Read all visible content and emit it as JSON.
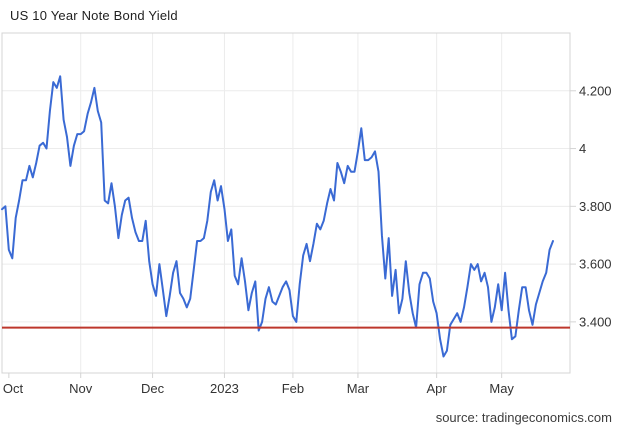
{
  "title": "US 10 Year Note Bond Yield",
  "source": "source: tradingeconomics.com",
  "colors": {
    "series_line": "#3a6ad4",
    "reference_line": "#bd372c",
    "grid": "#ececec",
    "axis_border": "#d4d4d4",
    "tick_text": "#333333"
  },
  "chart_data": {
    "type": "line",
    "title": "US 10 Year Note Bond Yield",
    "series_name": "US 10 Year Note Bond Yield",
    "ylabel": "",
    "xlabel": "",
    "grid": true,
    "legend_position": "none",
    "ylim": [
      3.223,
      4.4
    ],
    "y_ticks": [
      {
        "label": "4.200",
        "value": 4.2
      },
      {
        "label": "4",
        "value": 4.0
      },
      {
        "label": "3.800",
        "value": 3.8
      },
      {
        "label": "3.600",
        "value": 3.6
      },
      {
        "label": "3.400",
        "value": 3.4
      }
    ],
    "x_ticks": [
      {
        "label": "Oct",
        "index": 2,
        "gridline": false
      },
      {
        "label": "Nov",
        "index": 23,
        "gridline": true
      },
      {
        "label": "Dec",
        "index": 44,
        "gridline": true
      },
      {
        "label": "2023",
        "index": 65,
        "gridline": true
      },
      {
        "label": "Feb",
        "index": 85,
        "gridline": true
      },
      {
        "label": "Mar",
        "index": 104,
        "gridline": true
      },
      {
        "label": "Apr",
        "index": 127,
        "gridline": true
      },
      {
        "label": "May",
        "index": 146,
        "gridline": true
      }
    ],
    "reference_line": {
      "value": 3.38
    },
    "values": [
      3.79,
      3.8,
      3.65,
      3.62,
      3.76,
      3.82,
      3.89,
      3.89,
      3.94,
      3.9,
      3.95,
      4.01,
      4.02,
      4.0,
      4.13,
      4.23,
      4.21,
      4.25,
      4.1,
      4.04,
      3.94,
      4.01,
      4.05,
      4.05,
      4.06,
      4.12,
      4.16,
      4.21,
      4.13,
      4.09,
      3.82,
      3.81,
      3.88,
      3.8,
      3.69,
      3.77,
      3.82,
      3.83,
      3.76,
      3.71,
      3.68,
      3.68,
      3.75,
      3.61,
      3.53,
      3.49,
      3.6,
      3.51,
      3.42,
      3.49,
      3.57,
      3.61,
      3.5,
      3.48,
      3.45,
      3.48,
      3.58,
      3.68,
      3.68,
      3.69,
      3.75,
      3.85,
      3.89,
      3.82,
      3.87,
      3.79,
      3.68,
      3.72,
      3.56,
      3.53,
      3.62,
      3.54,
      3.44,
      3.5,
      3.54,
      3.37,
      3.4,
      3.48,
      3.52,
      3.47,
      3.46,
      3.49,
      3.52,
      3.54,
      3.51,
      3.42,
      3.4,
      3.53,
      3.63,
      3.67,
      3.61,
      3.67,
      3.74,
      3.72,
      3.75,
      3.81,
      3.86,
      3.82,
      3.95,
      3.92,
      3.88,
      3.94,
      3.92,
      3.92,
      3.99,
      4.07,
      3.96,
      3.96,
      3.97,
      3.99,
      3.92,
      3.7,
      3.55,
      3.69,
      3.49,
      3.58,
      3.43,
      3.48,
      3.61,
      3.5,
      3.43,
      3.38,
      3.53,
      3.57,
      3.57,
      3.55,
      3.47,
      3.43,
      3.34,
      3.28,
      3.3,
      3.39,
      3.41,
      3.43,
      3.4,
      3.45,
      3.52,
      3.6,
      3.58,
      3.6,
      3.54,
      3.57,
      3.52,
      3.4,
      3.45,
      3.53,
      3.44,
      3.57,
      3.44,
      3.34,
      3.35,
      3.44,
      3.52,
      3.52,
      3.44,
      3.39,
      3.46,
      3.5,
      3.54,
      3.57,
      3.65,
      3.68
    ]
  }
}
